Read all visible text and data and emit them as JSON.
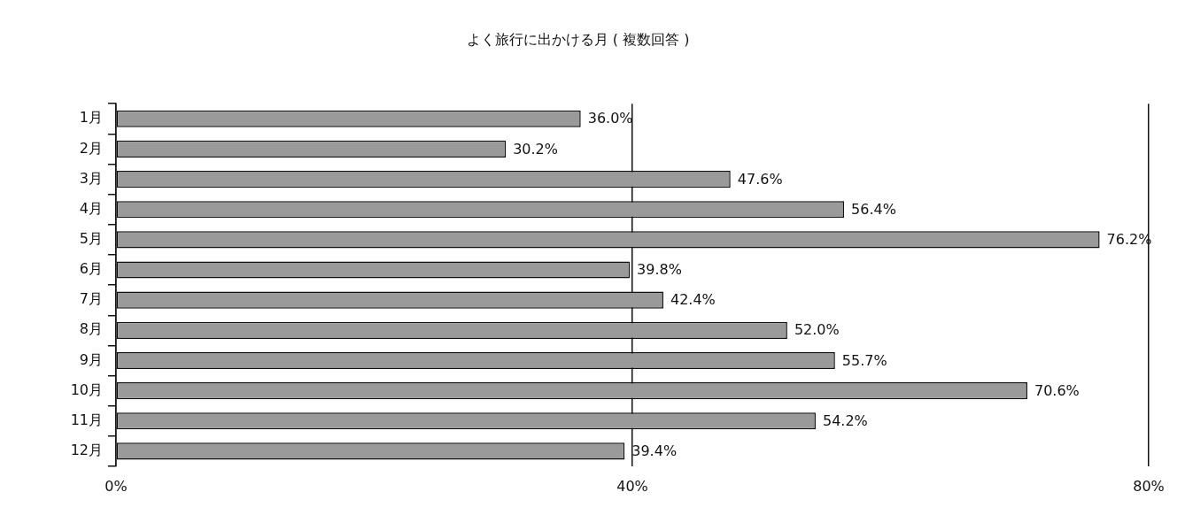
{
  "chart_data": {
    "type": "bar",
    "orientation": "horizontal",
    "title": "よく旅行に出かける月 ( 複数回答 )",
    "categories": [
      "1月",
      "2月",
      "3月",
      "4月",
      "5月",
      "6月",
      "7月",
      "8月",
      "9月",
      "10月",
      "11月",
      "12月"
    ],
    "values": [
      36.0,
      30.2,
      47.6,
      56.4,
      76.2,
      39.8,
      42.4,
      52.0,
      55.7,
      70.6,
      54.2,
      39.4
    ],
    "value_labels": [
      "36.0%",
      "30.2%",
      "47.6%",
      "56.4%",
      "76.2%",
      "39.8%",
      "42.4%",
      "52.0%",
      "55.7%",
      "70.6%",
      "54.2%",
      "39.4%"
    ],
    "color": "#9a9a9a",
    "xlim": [
      0,
      80
    ],
    "xticks": [
      {
        "value": 0,
        "label": "0%"
      },
      {
        "value": 40,
        "label": "40%"
      },
      {
        "value": 80,
        "label": "80%"
      }
    ],
    "grid": "x"
  }
}
